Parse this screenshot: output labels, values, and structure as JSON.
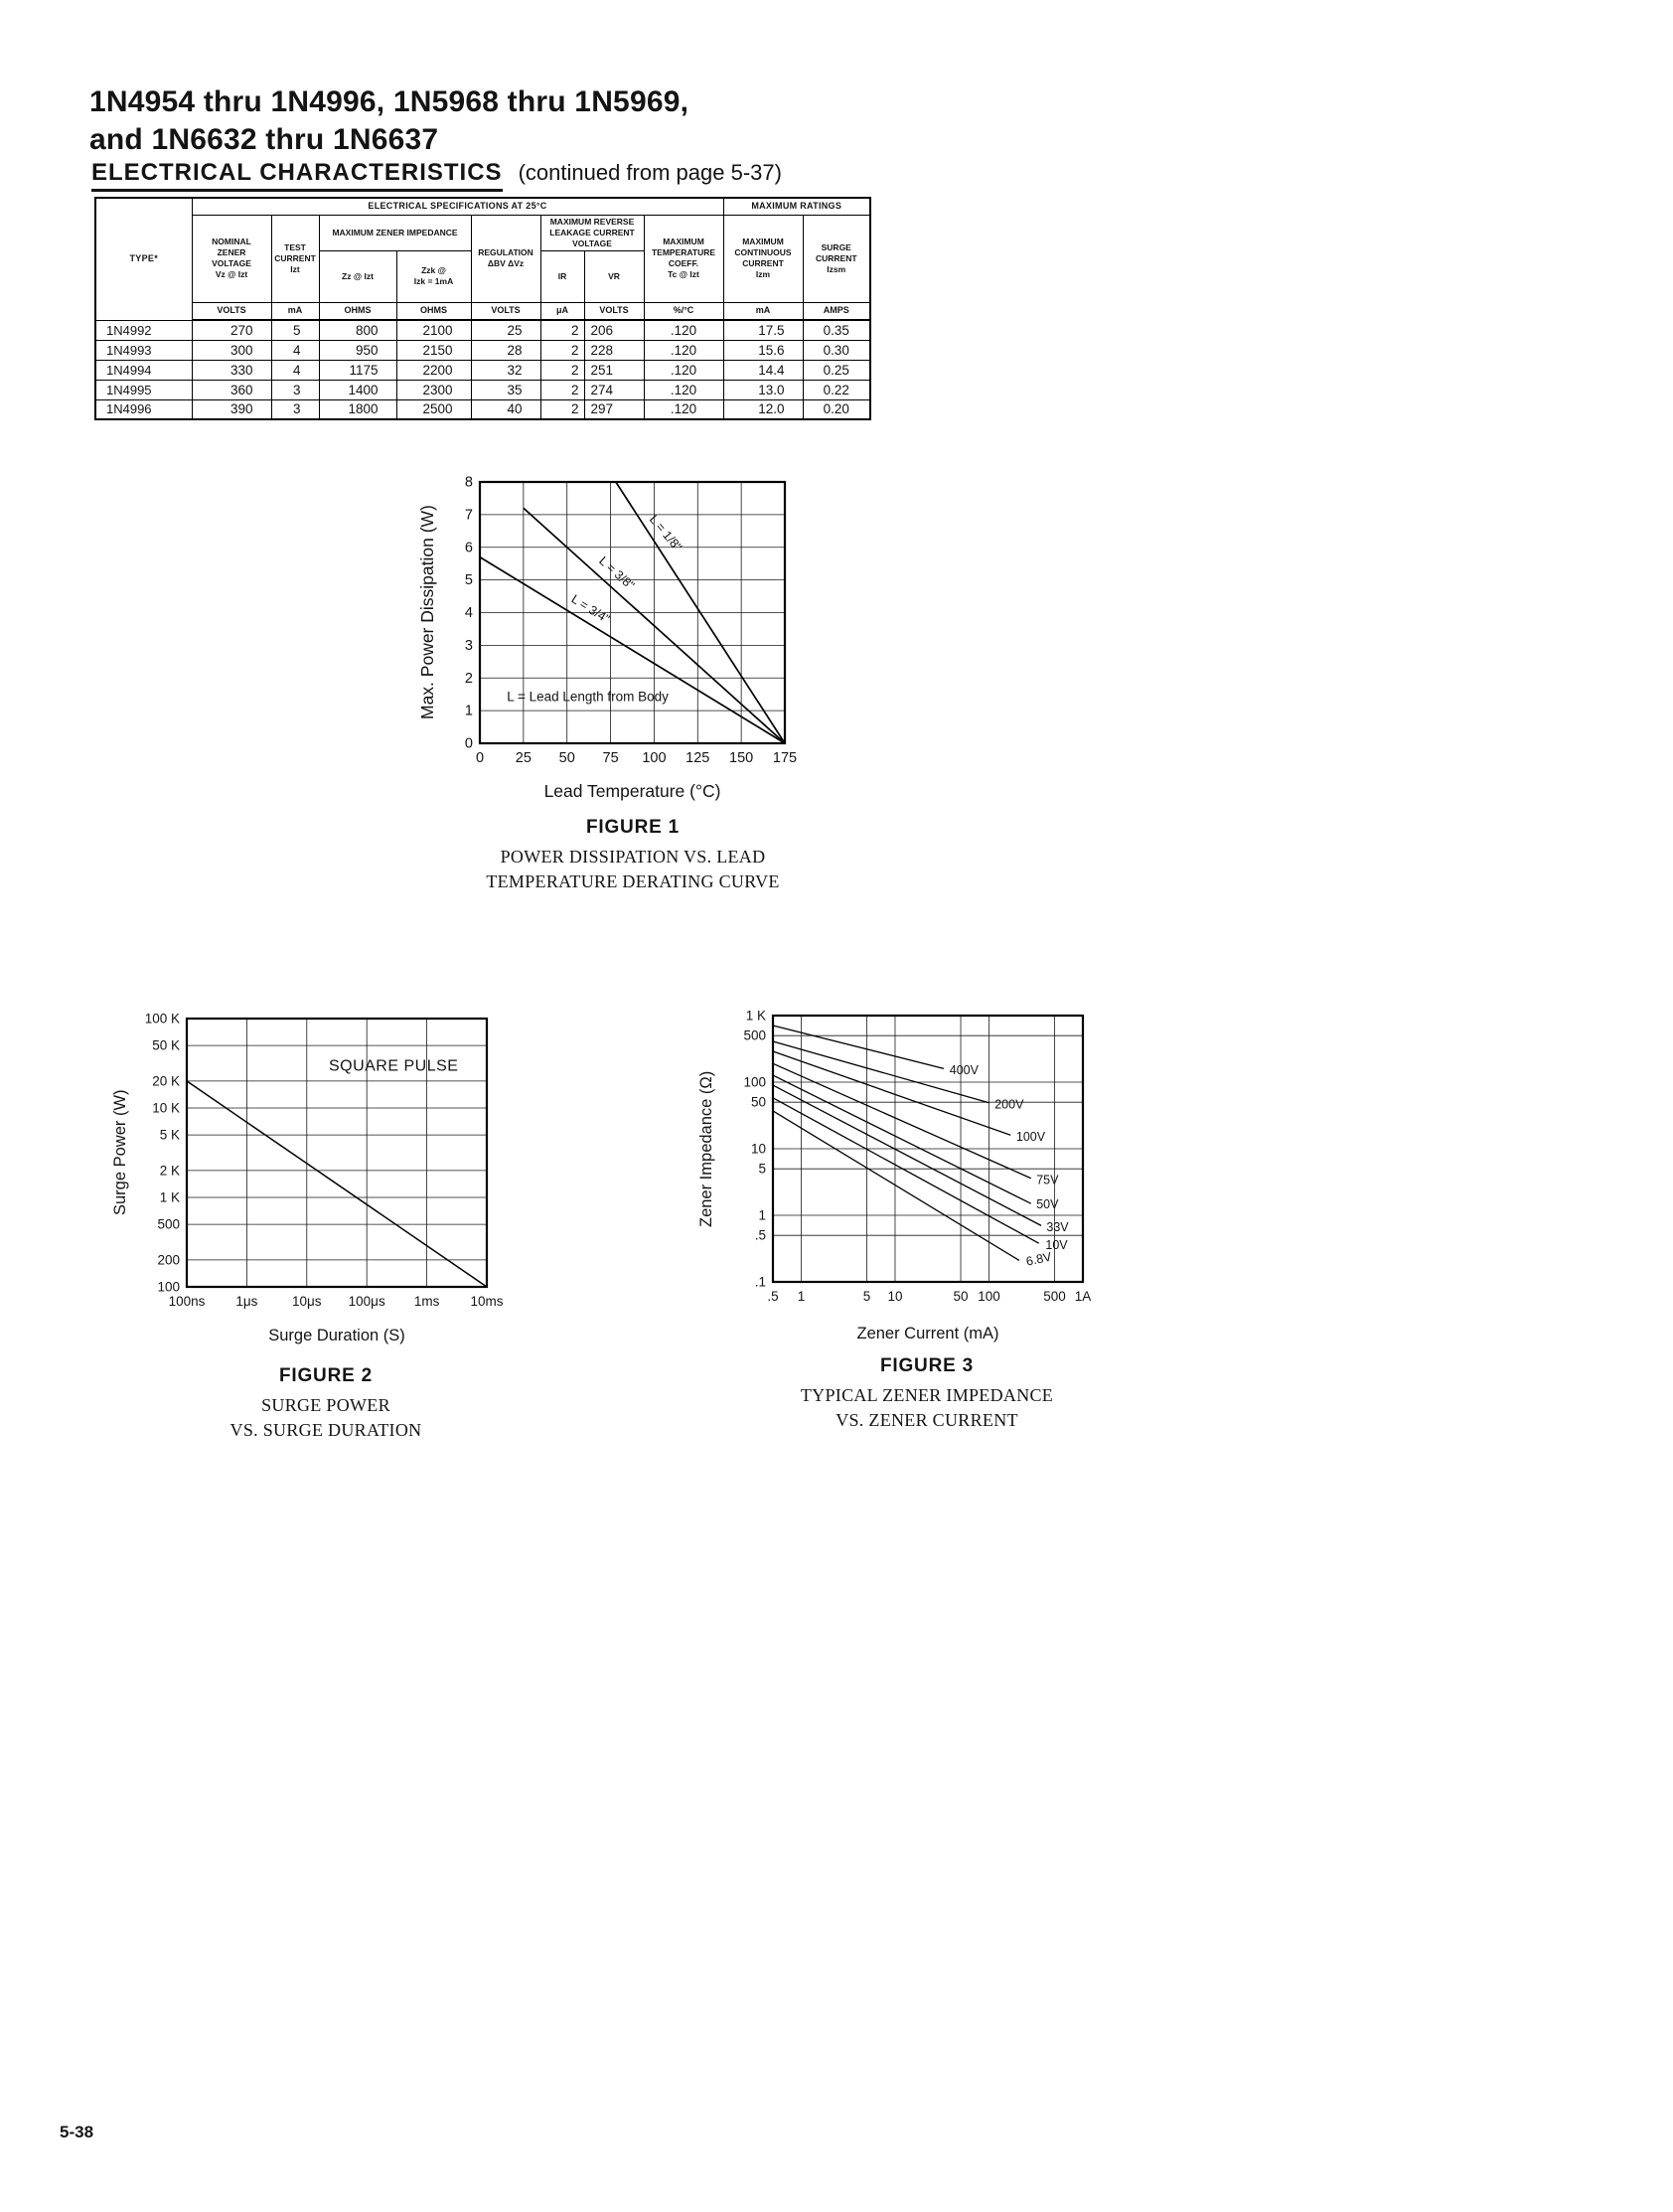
{
  "page": {
    "title_line1": "1N4954 thru 1N4996, 1N5968 thru 1N5969,",
    "title_line2": "and 1N6632 thru 1N6637",
    "section_heading": "ELECTRICAL CHARACTERISTICS",
    "section_continued": "(continued from page 5-37)",
    "page_number": "5-38"
  },
  "table": {
    "banner": {
      "elec_spec": "ELECTRICAL SPECIFICATIONS AT 25°C",
      "max_ratings": "MAXIMUM RATINGS"
    },
    "headers": {
      "type": "TYPE*",
      "nominal": "NOMINAL\nZENER\nVOLTAGE\nVz @ Izt",
      "test_current": "TEST\nCURRENT\nIzt",
      "max_zener_impedance": "MAXIMUM ZENER IMPEDANCE",
      "zz": "Zz @ Izt",
      "zzk": "Zzk @\nIzk = 1mA",
      "regulation": "REGULATION\nΔBV  ΔVz",
      "max_reverse": "MAXIMUM REVERSE\nLEAKAGE CURRENT\nVOLTAGE",
      "ir": "IR",
      "vr": "VR",
      "max_temp": "MAXIMUM\nTEMPERATURE\nCOEFF.\nTc @ Izt",
      "max_cont": "MAXIMUM\nCONTINUOUS\nCURRENT\nIzm",
      "surge": "SURGE\nCURRENT\nIzsm"
    },
    "units": [
      "VOLTS",
      "mA",
      "OHMS",
      "OHMS",
      "VOLTS",
      "μA",
      "VOLTS",
      "%/°C",
      "mA",
      "AMPS"
    ],
    "rows": [
      [
        "1N4992",
        "270",
        "5",
        "800",
        "2100",
        "25",
        "2",
        "206",
        ".120",
        "17.5",
        "0.35"
      ],
      [
        "1N4993",
        "300",
        "4",
        "950",
        "2150",
        "28",
        "2",
        "228",
        ".120",
        "15.6",
        "0.30"
      ],
      [
        "1N4994",
        "330",
        "4",
        "1175",
        "2200",
        "32",
        "2",
        "251",
        ".120",
        "14.4",
        "0.25"
      ],
      [
        "1N4995",
        "360",
        "3",
        "1400",
        "2300",
        "35",
        "2",
        "274",
        ".120",
        "13.0",
        "0.22"
      ],
      [
        "1N4996",
        "390",
        "3",
        "1800",
        "2500",
        "40",
        "2",
        "297",
        ".120",
        "12.0",
        "0.20"
      ]
    ]
  },
  "chart_data": [
    {
      "id": "figure1",
      "type": "line",
      "title": "FIGURE 1",
      "caption": [
        "POWER DISSIPATION VS. LEAD",
        "TEMPERATURE  DERATING CURVE"
      ],
      "xlabel": "Lead Temperature (°C)",
      "ylabel": "Max. Power Dissipation (W)",
      "xscale": "linear",
      "xlim": [
        0,
        175
      ],
      "yscale": "linear",
      "ylim": [
        0,
        8
      ],
      "grid": true,
      "xticks": [
        {
          "v": 0,
          "label": "0"
        },
        {
          "v": 25,
          "label": "25"
        },
        {
          "v": 50,
          "label": "50"
        },
        {
          "v": 75,
          "label": "75"
        },
        {
          "v": 100,
          "label": "100"
        },
        {
          "v": 125,
          "label": "125"
        },
        {
          "v": 150,
          "label": "150"
        },
        {
          "v": 175,
          "label": "175"
        }
      ],
      "yticks": [
        {
          "v": 0,
          "label": "0"
        },
        {
          "v": 1,
          "label": "1"
        },
        {
          "v": 2,
          "label": "2"
        },
        {
          "v": 3,
          "label": "3"
        },
        {
          "v": 4,
          "label": "4"
        },
        {
          "v": 5,
          "label": "5"
        },
        {
          "v": 6,
          "label": "6"
        },
        {
          "v": 7,
          "label": "7"
        },
        {
          "v": 8,
          "label": "8"
        }
      ],
      "series": [
        {
          "name": "L = 1/8\"",
          "points": [
            [
              78,
              8
            ],
            [
              175,
              0
            ]
          ],
          "label": {
            "x": 97,
            "y": 6.85,
            "rot": 50
          }
        },
        {
          "name": "L = 3/8\"",
          "points": [
            [
              25,
              7.2
            ],
            [
              175,
              0
            ]
          ],
          "label": {
            "x": 68,
            "y": 5.55,
            "rot": 42
          }
        },
        {
          "name": "L = 3/4\"",
          "points": [
            [
              0,
              5.7
            ],
            [
              175,
              0
            ]
          ],
          "label": {
            "x": 52,
            "y": 4.35,
            "rot": 32
          }
        }
      ],
      "annotations": [
        {
          "text": "L = Lead Length from Body",
          "x": 15.5,
          "y": 1.3,
          "anchor": "start",
          "size": 13.5
        }
      ]
    },
    {
      "id": "figure2",
      "type": "line",
      "title": "FIGURE 2",
      "caption": [
        "SURGE POWER",
        "VS. SURGE DURATION"
      ],
      "xlabel": "Surge Duration (S)",
      "ylabel": "Surge Power (W)",
      "xscale": "log",
      "xlim": [
        1e-07,
        0.01
      ],
      "yscale": "log",
      "ylim": [
        100,
        100000
      ],
      "grid": true,
      "xticks": [
        {
          "v": 1e-07,
          "label": "100ns"
        },
        {
          "v": 1e-06,
          "label": "1μs"
        },
        {
          "v": 1e-05,
          "label": "10μs"
        },
        {
          "v": 0.0001,
          "label": "100μs"
        },
        {
          "v": 0.001,
          "label": "1ms"
        },
        {
          "v": 0.01,
          "label": "10ms"
        }
      ],
      "yticks": [
        {
          "v": 100,
          "label": "100"
        },
        {
          "v": 200,
          "label": "200"
        },
        {
          "v": 500,
          "label": "500"
        },
        {
          "v": 1000,
          "label": "1 K"
        },
        {
          "v": 2000,
          "label": "2 K"
        },
        {
          "v": 5000,
          "label": "5 K"
        },
        {
          "v": 10000,
          "label": "10 K"
        },
        {
          "v": 20000,
          "label": "20 K"
        },
        {
          "v": 50000,
          "label": "50 K"
        },
        {
          "v": 100000,
          "label": "100 K"
        }
      ],
      "series": [
        {
          "name": "",
          "points": [
            [
              1e-07,
              20000
            ],
            [
              0.01,
              100
            ]
          ]
        }
      ],
      "annotations": [
        {
          "text": "SQUARE PULSE",
          "x": 0.00028,
          "y": 26000,
          "anchor": "middle",
          "size": 16,
          "ls": 0.5
        }
      ]
    },
    {
      "id": "figure3",
      "type": "line",
      "title": "FIGURE 3",
      "caption": [
        "TYPICAL ZENER IMPEDANCE",
        "VS. ZENER CURRENT"
      ],
      "xlabel": "Zener Current (mA)",
      "ylabel": "Zener Impedance (Ω)",
      "xscale": "log",
      "xlim": [
        0.5,
        1000
      ],
      "yscale": "log",
      "ylim": [
        0.1,
        1000
      ],
      "grid": true,
      "xticks": [
        {
          "v": 0.5,
          "label": ".5"
        },
        {
          "v": 1,
          "label": "1"
        },
        {
          "v": 5,
          "label": "5"
        },
        {
          "v": 10,
          "label": "10"
        },
        {
          "v": 50,
          "label": "50"
        },
        {
          "v": 100,
          "label": "100"
        },
        {
          "v": 500,
          "label": "500"
        },
        {
          "v": 1000,
          "label": "1A"
        }
      ],
      "yticks": [
        {
          "v": 0.1,
          "label": ".1"
        },
        {
          "v": 0.5,
          "label": ".5"
        },
        {
          "v": 1,
          "label": "1"
        },
        {
          "v": 5,
          "label": "5"
        },
        {
          "v": 10,
          "label": "10"
        },
        {
          "v": 50,
          "label": "50"
        },
        {
          "v": 100,
          "label": "100"
        },
        {
          "v": 500,
          "label": "500"
        },
        {
          "v": 1000,
          "label": "1 K"
        }
      ],
      "series": [
        {
          "name": "400V",
          "points": [
            [
              0.5,
              710
            ],
            [
              33,
              160
            ]
          ],
          "label": {
            "x": 38,
            "y": 150,
            "rot": 0,
            "dy": 4
          }
        },
        {
          "name": "200V",
          "points": [
            [
              0.5,
              410
            ],
            [
              100,
              49
            ]
          ],
          "label": {
            "x": 115,
            "y": 46,
            "rot": 0,
            "dy": 4
          }
        },
        {
          "name": "100V",
          "points": [
            [
              0.5,
              290
            ],
            [
              170,
              16
            ]
          ],
          "label": {
            "x": 195,
            "y": 15,
            "rot": 0,
            "dy": 4
          }
        },
        {
          "name": "75V",
          "points": [
            [
              0.5,
              190
            ],
            [
              280,
              3.6
            ]
          ],
          "label": {
            "x": 320,
            "y": 3.4,
            "rot": 0,
            "dy": 4
          }
        },
        {
          "name": "50V",
          "points": [
            [
              0.5,
              127
            ],
            [
              280,
              1.5
            ]
          ],
          "label": {
            "x": 320,
            "y": 1.45,
            "rot": 0,
            "dy": 4
          }
        },
        {
          "name": "33V",
          "points": [
            [
              0.5,
              90
            ],
            [
              360,
              0.7
            ]
          ],
          "label": {
            "x": 410,
            "y": 0.66,
            "rot": 0,
            "dy": 4
          }
        },
        {
          "name": "10V",
          "points": [
            [
              0.5,
              58
            ],
            [
              340,
              0.38
            ]
          ],
          "label": {
            "x": 400,
            "y": 0.355,
            "rot": 0,
            "dy": 4
          }
        },
        {
          "name": "6.8V",
          "points": [
            [
              0.5,
              37
            ],
            [
              210,
              0.21
            ]
          ],
          "label": {
            "x": 250,
            "y": 0.2,
            "rot": -12,
            "dy": 4
          }
        }
      ]
    }
  ]
}
